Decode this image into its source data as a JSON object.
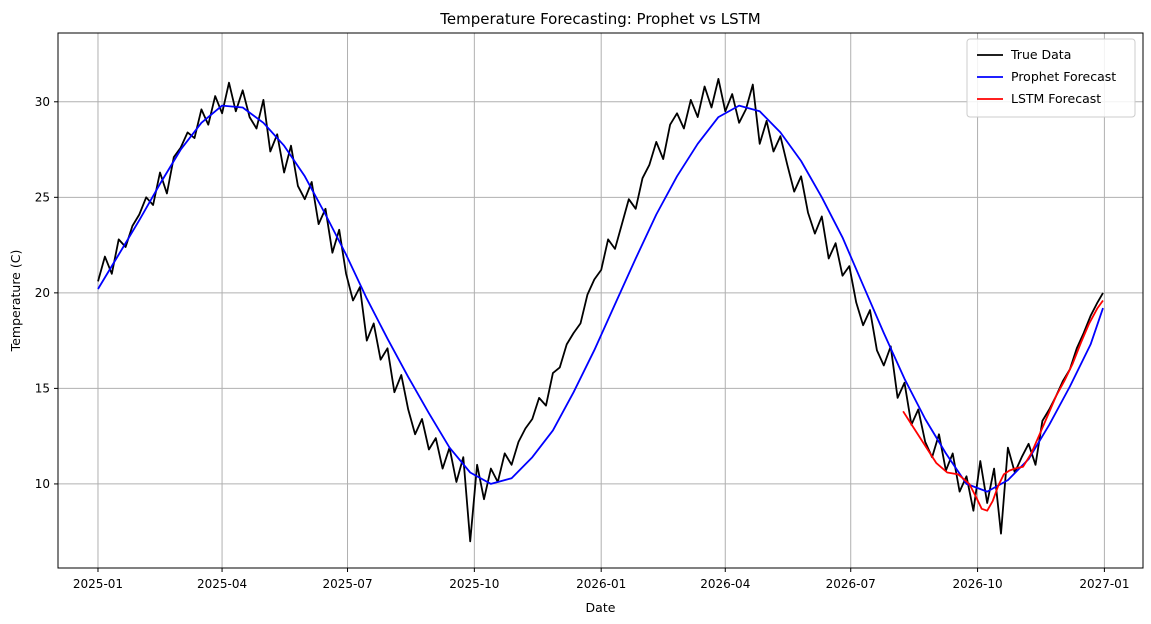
{
  "chart_data": {
    "type": "line",
    "title": "Temperature Forecasting: Prophet vs LSTM",
    "xlabel": "Date",
    "ylabel": "Temperature (C)",
    "xlim": [
      "2024-12-03",
      "2027-01-29"
    ],
    "ylim": [
      5.6,
      33.6
    ],
    "grid": true,
    "legend_position": "top-right",
    "x_ticks": [
      "2025-01",
      "2025-04",
      "2025-07",
      "2025-10",
      "2026-01",
      "2026-04",
      "2026-07",
      "2026-10",
      "2027-01"
    ],
    "y_ticks": [
      10,
      15,
      20,
      25,
      30
    ],
    "series": [
      {
        "name": "True Data",
        "color": "#000000",
        "x": [
          "2025-01-01",
          "2025-01-06",
          "2025-01-11",
          "2025-01-16",
          "2025-01-21",
          "2025-01-26",
          "2025-01-31",
          "2025-02-05",
          "2025-02-10",
          "2025-02-15",
          "2025-02-20",
          "2025-02-25",
          "2025-03-02",
          "2025-03-07",
          "2025-03-12",
          "2025-03-17",
          "2025-03-22",
          "2025-03-27",
          "2025-04-01",
          "2025-04-06",
          "2025-04-11",
          "2025-04-16",
          "2025-04-21",
          "2025-04-26",
          "2025-05-01",
          "2025-05-06",
          "2025-05-11",
          "2025-05-16",
          "2025-05-21",
          "2025-05-26",
          "2025-05-31",
          "2025-06-05",
          "2025-06-10",
          "2025-06-15",
          "2025-06-20",
          "2025-06-25",
          "2025-06-30",
          "2025-07-05",
          "2025-07-10",
          "2025-07-15",
          "2025-07-20",
          "2025-07-25",
          "2025-07-30",
          "2025-08-04",
          "2025-08-09",
          "2025-08-14",
          "2025-08-19",
          "2025-08-24",
          "2025-08-29",
          "2025-09-03",
          "2025-09-08",
          "2025-09-13",
          "2025-09-18",
          "2025-09-23",
          "2025-09-28",
          "2025-10-03",
          "2025-10-08",
          "2025-10-13",
          "2025-10-18",
          "2025-10-23",
          "2025-10-28",
          "2025-11-02",
          "2025-11-07",
          "2025-11-12",
          "2025-11-17",
          "2025-11-22",
          "2025-11-27",
          "2025-12-02",
          "2025-12-07",
          "2025-12-12",
          "2025-12-17",
          "2025-12-22",
          "2025-12-27",
          "2026-01-01",
          "2026-01-06",
          "2026-01-11",
          "2026-01-16",
          "2026-01-21",
          "2026-01-26",
          "2026-01-31",
          "2026-02-05",
          "2026-02-10",
          "2026-02-15",
          "2026-02-20",
          "2026-02-25",
          "2026-03-02",
          "2026-03-07",
          "2026-03-12",
          "2026-03-17",
          "2026-03-22",
          "2026-03-27",
          "2026-04-01",
          "2026-04-06",
          "2026-04-11",
          "2026-04-16",
          "2026-04-21",
          "2026-04-26",
          "2026-05-01",
          "2026-05-06",
          "2026-05-11",
          "2026-05-16",
          "2026-05-21",
          "2026-05-26",
          "2026-05-31",
          "2026-06-05",
          "2026-06-10",
          "2026-06-15",
          "2026-06-20",
          "2026-06-25",
          "2026-06-30",
          "2026-07-05",
          "2026-07-10",
          "2026-07-15",
          "2026-07-20",
          "2026-07-25",
          "2026-07-30",
          "2026-08-04",
          "2026-08-09",
          "2026-08-14",
          "2026-08-19",
          "2026-08-24",
          "2026-08-29",
          "2026-09-03",
          "2026-09-08",
          "2026-09-13",
          "2026-09-18",
          "2026-09-23",
          "2026-09-28",
          "2026-10-03",
          "2026-10-08",
          "2026-10-13",
          "2026-10-18",
          "2026-10-23",
          "2026-10-28",
          "2026-11-02",
          "2026-11-07",
          "2026-11-12",
          "2026-11-17",
          "2026-11-22",
          "2026-11-27",
          "2026-12-02",
          "2026-12-07",
          "2026-12-12",
          "2026-12-17",
          "2026-12-22",
          "2026-12-27",
          "2026-12-31"
        ],
        "y": [
          20.6,
          21.9,
          21.0,
          22.8,
          22.4,
          23.5,
          24.1,
          25.0,
          24.6,
          26.3,
          25.2,
          27.1,
          27.6,
          28.4,
          28.1,
          29.6,
          28.8,
          30.3,
          29.4,
          31.0,
          29.5,
          30.6,
          29.2,
          28.6,
          30.1,
          27.4,
          28.3,
          26.3,
          27.7,
          25.6,
          24.9,
          25.8,
          23.6,
          24.4,
          22.1,
          23.3,
          21.0,
          19.6,
          20.3,
          17.5,
          18.4,
          16.5,
          17.1,
          14.8,
          15.7,
          13.9,
          12.6,
          13.4,
          11.8,
          12.4,
          10.8,
          11.9,
          10.1,
          11.4,
          7.0,
          11.0,
          9.2,
          10.8,
          10.1,
          11.6,
          11.0,
          12.2,
          12.9,
          13.4,
          14.5,
          14.1,
          15.8,
          16.1,
          17.3,
          17.9,
          18.4,
          19.9,
          20.7,
          21.2,
          22.8,
          22.3,
          23.6,
          24.9,
          24.4,
          26.0,
          26.7,
          27.9,
          27.0,
          28.8,
          29.4,
          28.6,
          30.1,
          29.2,
          30.8,
          29.7,
          31.2,
          29.5,
          30.4,
          28.9,
          29.6,
          30.9,
          27.8,
          29.0,
          27.4,
          28.2,
          26.7,
          25.3,
          26.1,
          24.2,
          23.1,
          24.0,
          21.8,
          22.6,
          20.9,
          21.4,
          19.5,
          18.3,
          19.1,
          17.0,
          16.2,
          17.2,
          14.5,
          15.3,
          13.1,
          13.9,
          12.2,
          11.4,
          12.6,
          10.7,
          11.6,
          9.6,
          10.4,
          8.6,
          11.2,
          9.0,
          10.8,
          7.4,
          11.9,
          10.6,
          11.4,
          12.1,
          11.0,
          13.3,
          13.9,
          14.6,
          15.4,
          16.0,
          17.1,
          17.9,
          18.8,
          19.5,
          20.0
        ]
      },
      {
        "name": "Prophet Forecast",
        "color": "#0000ff",
        "x": [
          "2025-01-01",
          "2025-01-16",
          "2025-01-31",
          "2025-02-15",
          "2025-03-02",
          "2025-03-17",
          "2025-04-01",
          "2025-04-16",
          "2025-05-01",
          "2025-05-16",
          "2025-05-31",
          "2025-06-15",
          "2025-06-30",
          "2025-07-15",
          "2025-07-30",
          "2025-08-14",
          "2025-08-29",
          "2025-09-13",
          "2025-09-28",
          "2025-10-13",
          "2025-10-28",
          "2025-11-12",
          "2025-11-27",
          "2025-12-12",
          "2025-12-27",
          "2026-01-11",
          "2026-01-26",
          "2026-02-10",
          "2026-02-25",
          "2026-03-12",
          "2026-03-27",
          "2026-04-11",
          "2026-04-26",
          "2026-05-11",
          "2026-05-26",
          "2026-06-10",
          "2026-06-25",
          "2026-07-10",
          "2026-07-25",
          "2026-08-09",
          "2026-08-24",
          "2026-09-08",
          "2026-09-23",
          "2026-10-08",
          "2026-10-23",
          "2026-11-07",
          "2026-11-22",
          "2026-12-07",
          "2026-12-22",
          "2026-12-31"
        ],
        "y": [
          20.2,
          22.0,
          23.8,
          25.7,
          27.5,
          28.9,
          29.8,
          29.7,
          28.9,
          27.7,
          26.1,
          24.1,
          22.0,
          19.7,
          17.6,
          15.6,
          13.7,
          11.9,
          10.6,
          10.0,
          10.3,
          11.4,
          12.8,
          14.8,
          17.0,
          19.4,
          21.8,
          24.1,
          26.1,
          27.8,
          29.2,
          29.8,
          29.5,
          28.4,
          26.9,
          25.0,
          22.9,
          20.4,
          17.9,
          15.5,
          13.4,
          11.6,
          10.0,
          9.6,
          10.2,
          11.3,
          13.1,
          15.1,
          17.3,
          19.2
        ]
      },
      {
        "name": "LSTM Forecast",
        "color": "#ff0000",
        "x": [
          "2026-08-08",
          "2026-08-16",
          "2026-08-24",
          "2026-09-01",
          "2026-09-09",
          "2026-09-17",
          "2026-09-25",
          "2026-09-30",
          "2026-10-04",
          "2026-10-08",
          "2026-10-12",
          "2026-10-16",
          "2026-10-20",
          "2026-10-24",
          "2026-10-28",
          "2026-11-03",
          "2026-11-09",
          "2026-11-15",
          "2026-11-21",
          "2026-11-27",
          "2026-12-03",
          "2026-12-09",
          "2026-12-15",
          "2026-12-21",
          "2026-12-27",
          "2026-12-31"
        ],
        "y": [
          13.8,
          12.9,
          12.0,
          11.1,
          10.6,
          10.5,
          10.0,
          9.3,
          8.7,
          8.6,
          9.1,
          9.9,
          10.5,
          10.7,
          10.8,
          10.9,
          11.6,
          12.6,
          13.6,
          14.6,
          15.4,
          16.3,
          17.4,
          18.4,
          19.2,
          19.6
        ]
      }
    ]
  }
}
